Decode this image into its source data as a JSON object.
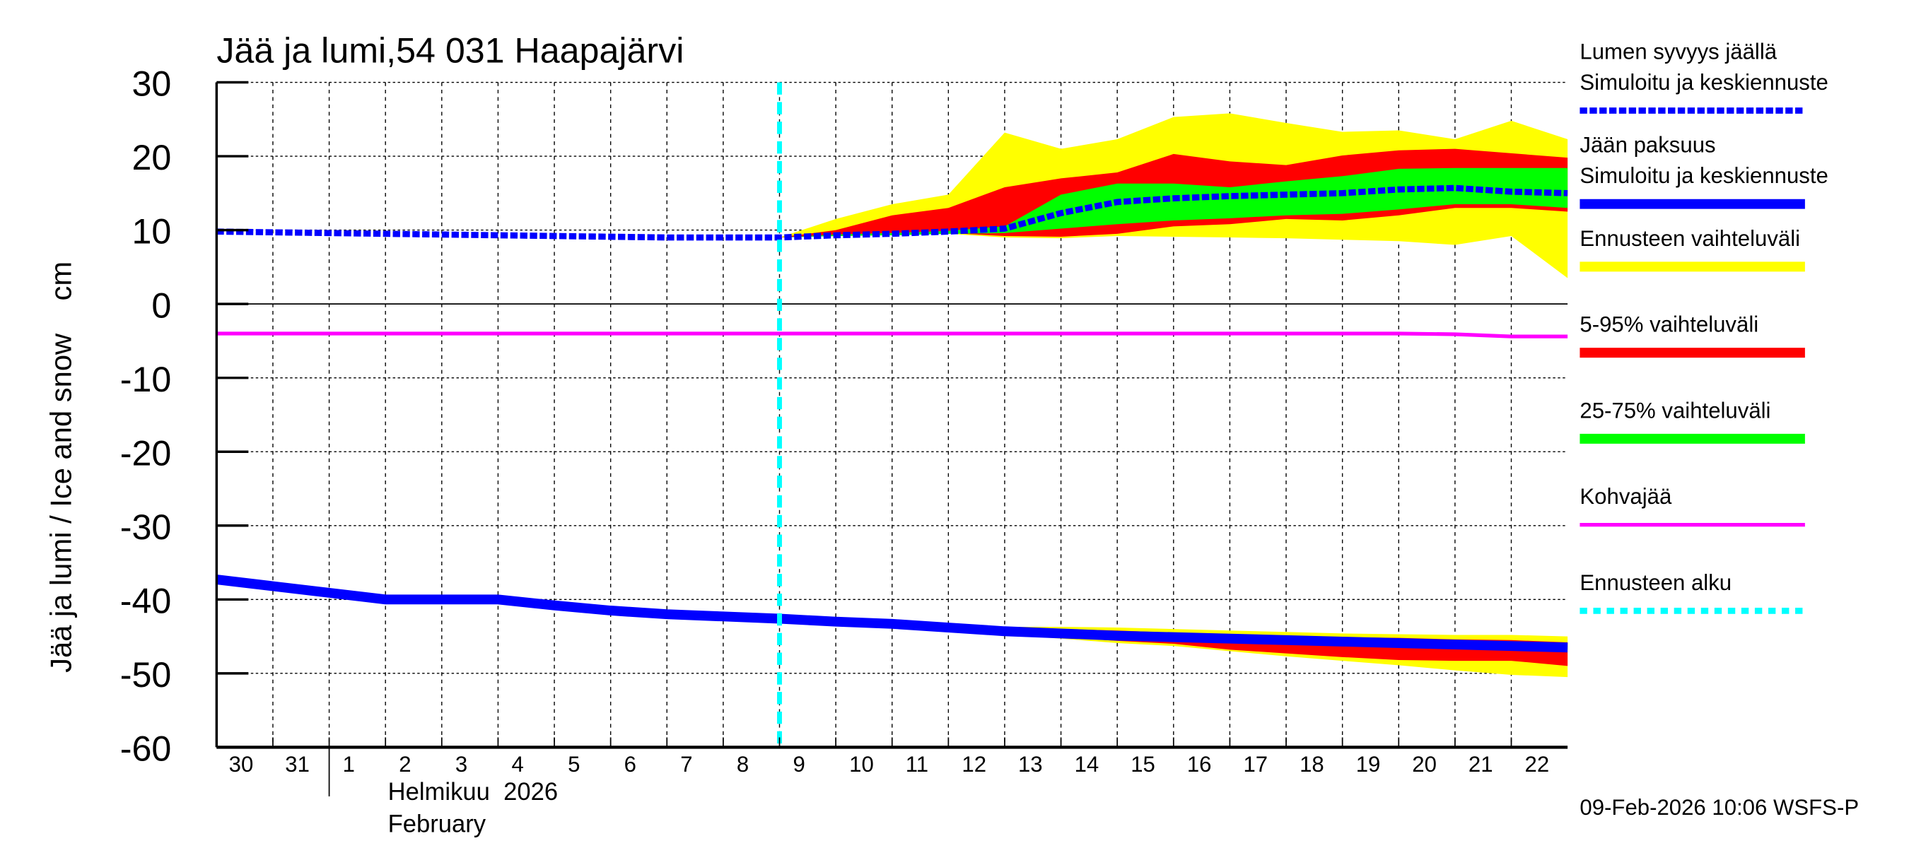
{
  "chart_data": {
    "type": "area",
    "title": "Jää ja lumi,54 031 Haapajärvi",
    "ylabel": "Jää ja lumi / Ice and snow    cm",
    "xlabel_lines": [
      "Helmikuu  2026",
      "February"
    ],
    "footer": "09-Feb-2026 10:06 WSFS-P",
    "ylim": [
      -60,
      30
    ],
    "yticks": [
      30,
      20,
      10,
      0,
      -10,
      -20,
      -30,
      -40,
      -50,
      -60
    ],
    "xlim": [
      "2026-01-30",
      "2026-02-23"
    ],
    "xtick_labels": [
      "30",
      "31",
      "1",
      "2",
      "3",
      "4",
      "5",
      "6",
      "7",
      "8",
      "9",
      "10",
      "11",
      "12",
      "13",
      "14",
      "15",
      "16",
      "17",
      "18",
      "19",
      "20",
      "21",
      "22"
    ],
    "grid": true,
    "forecast_start": "2026-02-09",
    "legend_position": "right",
    "colors": {
      "snow": "#0000ff",
      "ice": "#0000ff",
      "range_full": "#ffff00",
      "range_5_95": "#ff0000",
      "range_25_75": "#00ff00",
      "slush_ice": "#ff00ff",
      "forecast_start": "#00ffff"
    },
    "legend": [
      {
        "lines": [
          "Lumen syvyys jäällä",
          "Simuloitu ja keskiennuste"
        ],
        "style": "dashed",
        "color": "#0000ff"
      },
      {
        "lines": [
          "Jään paksuus",
          "Simuloitu ja keskiennuste"
        ],
        "style": "solid",
        "color": "#0000ff"
      },
      {
        "lines": [
          "Ennusteen vaihteluväli"
        ],
        "style": "bar",
        "color": "#ffff00"
      },
      {
        "lines": [
          "5-95% vaihteluväli"
        ],
        "style": "bar",
        "color": "#ff0000"
      },
      {
        "lines": [
          "25-75% vaihteluväli"
        ],
        "style": "bar",
        "color": "#00ff00"
      },
      {
        "lines": [
          "Kohvajää"
        ],
        "style": "line",
        "color": "#ff00ff"
      },
      {
        "lines": [
          "Ennusteen alku"
        ],
        "style": "dotted",
        "color": "#00ffff"
      }
    ],
    "dates": [
      "2026-01-30",
      "2026-01-31",
      "2026-02-01",
      "2026-02-02",
      "2026-02-03",
      "2026-02-04",
      "2026-02-05",
      "2026-02-06",
      "2026-02-07",
      "2026-02-08",
      "2026-02-09",
      "2026-02-10",
      "2026-02-11",
      "2026-02-12",
      "2026-02-13",
      "2026-02-14",
      "2026-02-15",
      "2026-02-16",
      "2026-02-17",
      "2026-02-18",
      "2026-02-19",
      "2026-02-20",
      "2026-02-21",
      "2026-02-22",
      "2026-02-23"
    ],
    "series": [
      {
        "name": "Lumen syvyys jäällä",
        "values": [
          9.8,
          9.7,
          9.6,
          9.5,
          9.4,
          9.3,
          9.2,
          9.1,
          9.0,
          9.0,
          9.0,
          9.3,
          9.5,
          9.8,
          10.2,
          12.3,
          13.8,
          14.3,
          14.6,
          14.8,
          15.0,
          15.5,
          15.7,
          15.2,
          15.0
        ]
      },
      {
        "name": "Jään paksuus",
        "values": [
          -37.3,
          -38.2,
          -39.1,
          -40.0,
          -40.0,
          -40.0,
          -40.8,
          -41.5,
          -42.0,
          -42.3,
          -42.6,
          -43.0,
          -43.3,
          -43.8,
          -44.3,
          -44.6,
          -44.9,
          -45.1,
          -45.3,
          -45.5,
          -45.7,
          -45.9,
          -46.1,
          -46.3,
          -46.5
        ]
      },
      {
        "name": "Kohvajää",
        "values": [
          -4,
          -4,
          -4,
          -4,
          -4,
          -4,
          -4,
          -4,
          -4,
          -4,
          -4,
          -4,
          -4,
          -4,
          -4,
          -4,
          -4,
          -4,
          -4,
          -4,
          -4,
          -4,
          -4.1,
          -4.4,
          -4.4
        ]
      }
    ],
    "snow_bands": {
      "start": "2026-02-09",
      "full": {
        "upper": [
          9,
          11.5,
          13.5,
          14.8,
          23.2,
          21,
          22.3,
          25.3,
          25.8,
          24.5,
          23.3,
          23.5,
          22.3,
          24.8,
          22.3
        ],
        "lower": [
          9,
          9.2,
          9.3,
          9.5,
          9.0,
          8.9,
          9.2,
          9.1,
          9.0,
          8.9,
          8.7,
          8.5,
          8.0,
          9.2,
          3.5
        ]
      },
      "p5_95": {
        "upper": [
          9,
          10,
          12,
          13,
          15.8,
          17,
          17.8,
          20.3,
          19.3,
          18.8,
          20.1,
          20.8,
          21,
          20.4,
          19.8
        ],
        "lower": [
          9,
          9.2,
          9.4,
          9.6,
          9.2,
          9.1,
          9.5,
          10.5,
          10.8,
          11.5,
          11.3,
          12,
          13,
          13,
          12.5
        ]
      },
      "p25_75": {
        "upper": [
          9,
          9.4,
          9.6,
          9.9,
          10.5,
          14.8,
          16.3,
          16.3,
          15.8,
          16.6,
          17.3,
          18.3,
          18.4,
          18.4,
          18.4
        ],
        "lower": [
          9,
          9.2,
          9.3,
          9.5,
          9.6,
          10.2,
          10.8,
          11.3,
          11.6,
          12,
          12.2,
          12.8,
          13.5,
          13.5,
          13
        ]
      }
    },
    "ice_bands": {
      "start": "2026-02-12",
      "full": {
        "upper": [
          -43.8,
          -43.7,
          -43.7,
          -43.8,
          -44.0,
          -44.2,
          -44.4,
          -44.6,
          -44.7,
          -44.8,
          -44.8,
          -45.0
        ],
        "lower": [
          -43.8,
          -44.8,
          -45.3,
          -45.9,
          -46.3,
          -47.0,
          -47.7,
          -48.3,
          -48.9,
          -49.6,
          -50.2,
          -50.5
        ]
      },
      "p5_95": {
        "upper": [
          -43.8,
          -44.0,
          -44.0,
          -44.2,
          -44.5,
          -44.7,
          -44.9,
          -45.1,
          -45.2,
          -45.4,
          -45.5,
          -45.8
        ],
        "lower": [
          -43.8,
          -44.6,
          -45.1,
          -45.6,
          -46.0,
          -46.8,
          -47.3,
          -47.8,
          -48.2,
          -48.3,
          -48.3,
          -49.0
        ]
      },
      "p25_75": {
        "upper": [
          -43.8,
          -44.2,
          -44.5,
          -44.8,
          -45.0,
          -45.2,
          -45.4,
          -45.6,
          -45.8,
          -45.9,
          -46.1,
          -46.3
        ],
        "lower": [
          -43.8,
          -44.4,
          -44.8,
          -45.1,
          -45.3,
          -45.6,
          -45.8,
          -46.0,
          -46.2,
          -46.5,
          -46.6,
          -46.8
        ]
      }
    }
  }
}
